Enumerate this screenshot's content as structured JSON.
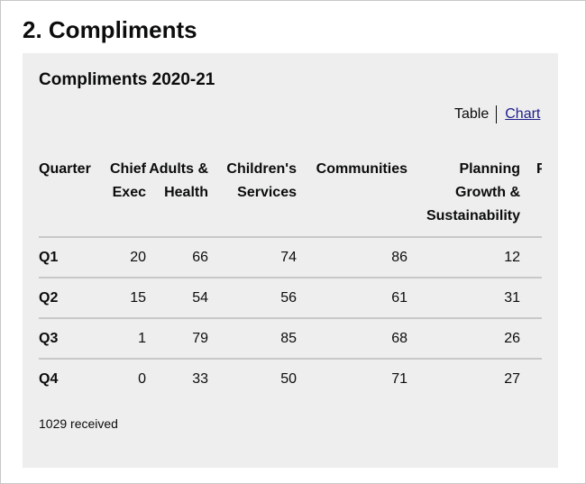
{
  "page": {
    "heading": "2. Compliments"
  },
  "panel": {
    "title": "Compliments 2020-21",
    "view_toggle": {
      "table_label": "Table",
      "chart_label": "Chart"
    },
    "table": {
      "headers": [
        "Quarter",
        "Chief Exec",
        "Adults & Health",
        "Children's Services",
        "Communities",
        "Planning Growth & Sustainability",
        "P"
      ],
      "rows": [
        {
          "quarter": "Q1",
          "chief_exec": "20",
          "adults_health": "66",
          "childrens_services": "74",
          "communities": "86",
          "planning": "12"
        },
        {
          "quarter": "Q2",
          "chief_exec": "15",
          "adults_health": "54",
          "childrens_services": "56",
          "communities": "61",
          "planning": "31"
        },
        {
          "quarter": "Q3",
          "chief_exec": "1",
          "adults_health": "79",
          "childrens_services": "85",
          "communities": "68",
          "planning": "26"
        },
        {
          "quarter": "Q4",
          "chief_exec": "0",
          "adults_health": "33",
          "childrens_services": "50",
          "communities": "71",
          "planning": "27"
        }
      ]
    },
    "footer_text": "1029 received"
  }
}
